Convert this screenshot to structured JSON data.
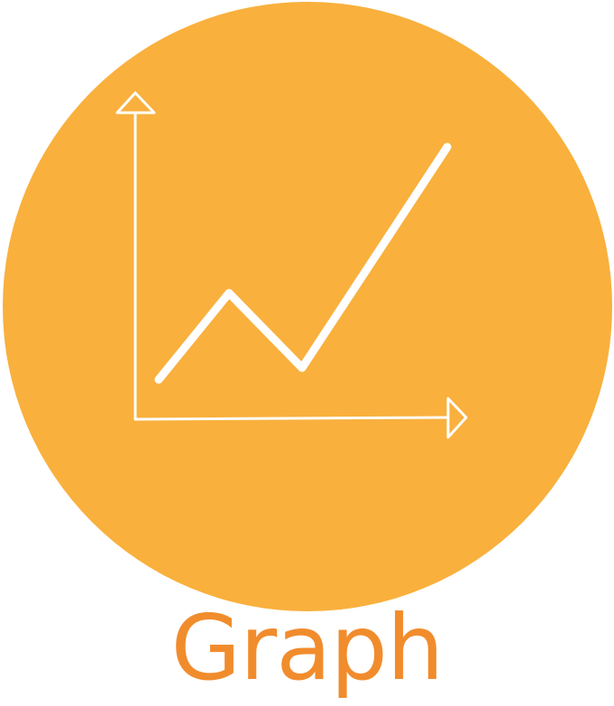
{
  "icon": {
    "name": "line-graph-icon",
    "circle_color": "#f9b03d",
    "stroke_color": "#ffffff"
  },
  "caption": {
    "text": "Graph",
    "color": "#f18c2d"
  }
}
